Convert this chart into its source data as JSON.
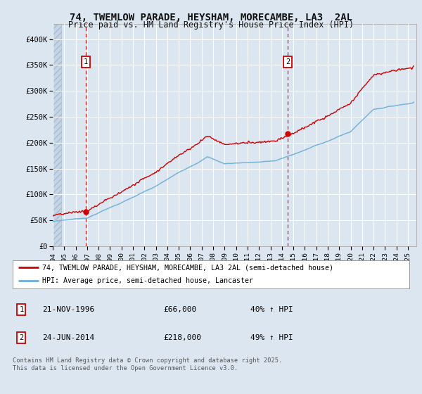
{
  "title_line1": "74, TWEMLOW PARADE, HEYSHAM, MORECAMBE, LA3  2AL",
  "title_line2": "Price paid vs. HM Land Registry's House Price Index (HPI)",
  "background_color": "#dce6f1",
  "plot_bg_color": "#dce6f1",
  "grid_color": "#ffffff",
  "red_color": "#cc0000",
  "blue_color": "#6baed6",
  "ylabel_ticks": [
    "£0",
    "£50K",
    "£100K",
    "£150K",
    "£200K",
    "£250K",
    "£300K",
    "£350K",
    "£400K"
  ],
  "ytick_values": [
    0,
    50000,
    100000,
    150000,
    200000,
    250000,
    300000,
    350000,
    400000
  ],
  "ylim": [
    0,
    430000
  ],
  "xlim_start": 1994.0,
  "xlim_end": 2025.75,
  "xtick_years": [
    1994,
    1995,
    1996,
    1997,
    1998,
    1999,
    2000,
    2001,
    2002,
    2003,
    2004,
    2005,
    2006,
    2007,
    2008,
    2009,
    2010,
    2011,
    2012,
    2013,
    2014,
    2015,
    2016,
    2017,
    2018,
    2019,
    2020,
    2021,
    2022,
    2023,
    2024,
    2025
  ],
  "sale1_x": 1996.9,
  "sale1_y": 66000,
  "sale1_label": "1",
  "sale2_x": 2014.5,
  "sale2_y": 218000,
  "sale2_label": "2",
  "legend_line1": "74, TWEMLOW PARADE, HEYSHAM, MORECAMBE, LA3 2AL (semi-detached house)",
  "legend_line2": "HPI: Average price, semi-detached house, Lancaster",
  "annotation1_date": "21-NOV-1996",
  "annotation1_price": "£66,000",
  "annotation1_hpi": "40% ↑ HPI",
  "annotation2_date": "24-JUN-2014",
  "annotation2_price": "£218,000",
  "annotation2_hpi": "49% ↑ HPI",
  "footer": "Contains HM Land Registry data © Crown copyright and database right 2025.\nThis data is licensed under the Open Government Licence v3.0."
}
